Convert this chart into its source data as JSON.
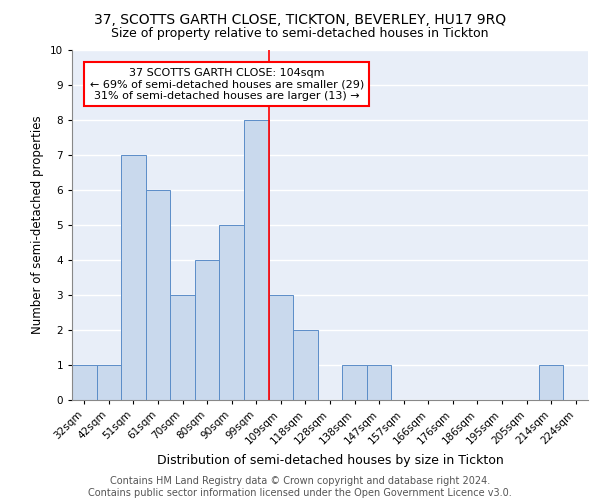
{
  "title": "37, SCOTTS GARTH CLOSE, TICKTON, BEVERLEY, HU17 9RQ",
  "subtitle": "Size of property relative to semi-detached houses in Tickton",
  "xlabel": "Distribution of semi-detached houses by size in Tickton",
  "ylabel": "Number of semi-detached properties",
  "categories": [
    "32sqm",
    "42sqm",
    "51sqm",
    "61sqm",
    "70sqm",
    "80sqm",
    "90sqm",
    "99sqm",
    "109sqm",
    "118sqm",
    "128sqm",
    "138sqm",
    "147sqm",
    "157sqm",
    "166sqm",
    "176sqm",
    "186sqm",
    "195sqm",
    "205sqm",
    "214sqm",
    "224sqm"
  ],
  "values": [
    1,
    1,
    7,
    6,
    3,
    4,
    5,
    8,
    3,
    2,
    0,
    1,
    1,
    0,
    0,
    0,
    0,
    0,
    0,
    1,
    0
  ],
  "bar_color": "#c9d9ed",
  "bar_edge_color": "#5b8dc8",
  "vline_color": "red",
  "vline_x_index": 7.5,
  "annotation_text": "37 SCOTTS GARTH CLOSE: 104sqm\n← 69% of semi-detached houses are smaller (29)\n31% of semi-detached houses are larger (13) →",
  "annotation_box_edgecolor": "red",
  "annotation_box_facecolor": "white",
  "ylim": [
    0,
    10
  ],
  "yticks": [
    0,
    1,
    2,
    3,
    4,
    5,
    6,
    7,
    8,
    9,
    10
  ],
  "footer_text": "Contains HM Land Registry data © Crown copyright and database right 2024.\nContains public sector information licensed under the Open Government Licence v3.0.",
  "background_color": "#e8eef8",
  "grid_color": "white",
  "title_fontsize": 10,
  "subtitle_fontsize": 9,
  "xlabel_fontsize": 9,
  "ylabel_fontsize": 8.5,
  "tick_fontsize": 7.5,
  "annotation_fontsize": 8,
  "footer_fontsize": 7
}
